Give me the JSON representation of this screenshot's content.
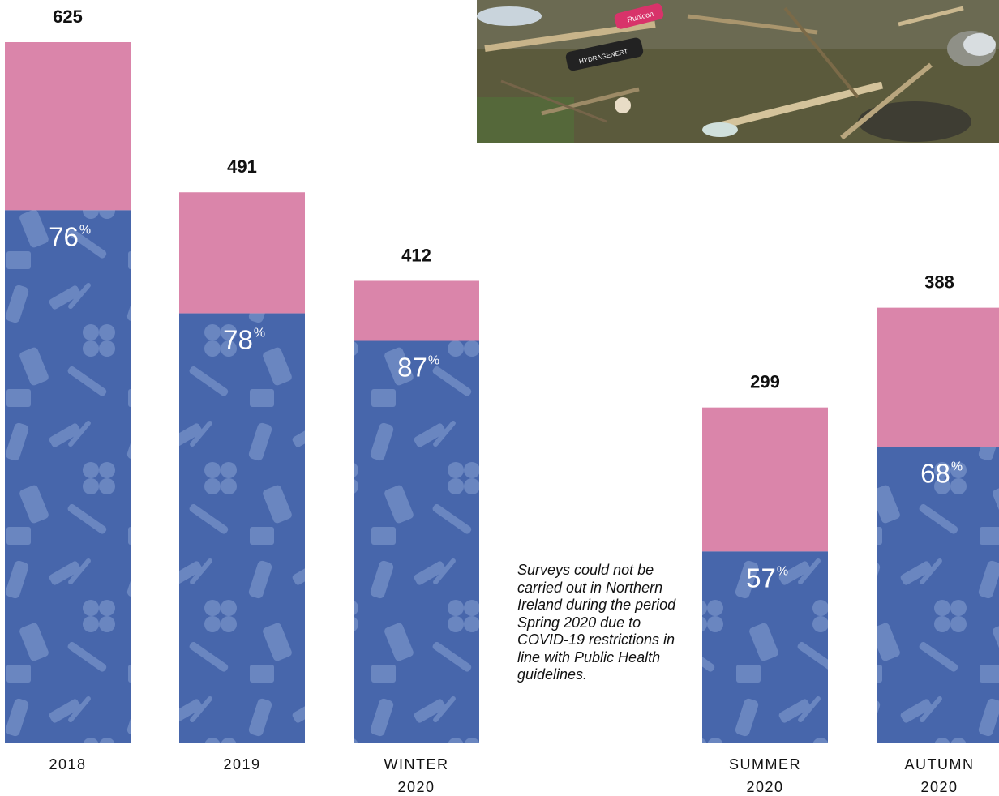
{
  "colors": {
    "bottom_segment": "#4766ab",
    "top_segment": "#da85aa",
    "litter_pattern": "#6a86c0"
  },
  "photo": {
    "icon": "beach-litter-photo",
    "text": [
      "HYDRAGENERT",
      "Rubicon"
    ]
  },
  "note": "Surveys could not be carried out in Northern Ireland during the period Spring 2020 due to COVID-19 restrictions in line with Public Health guidelines.",
  "chart_data": {
    "type": "bar",
    "stacked": true,
    "categories": [
      [
        "2018"
      ],
      [
        "2019"
      ],
      [
        "WINTER",
        "2020"
      ],
      [
        "SUMMER",
        "2020"
      ],
      [
        "AUTUMN",
        "2020"
      ]
    ],
    "totals": [
      625,
      491,
      412,
      299,
      388
    ],
    "percentages": [
      76,
      78,
      87,
      57,
      68
    ],
    "percent_symbol": "%",
    "ylim": [
      0,
      625
    ],
    "grid": false,
    "legend": "none"
  }
}
